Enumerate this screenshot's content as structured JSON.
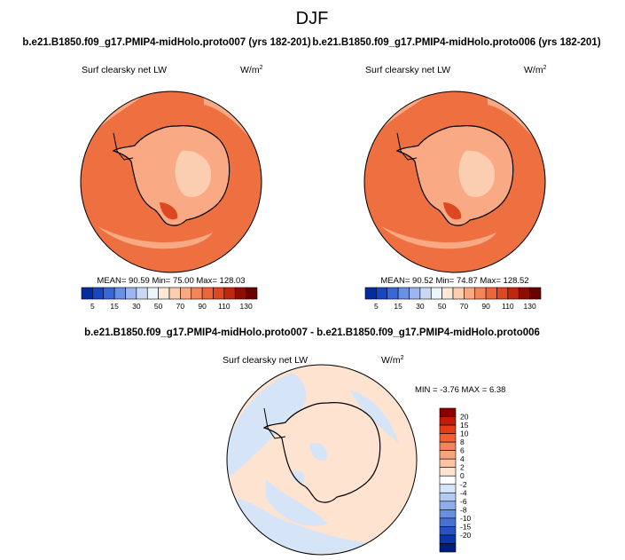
{
  "figure": {
    "title": "DJF",
    "top_left_title": "b.e21.B1850.f09_g17.PMIP4-midHolo.proto007 (yrs 182-201)",
    "top_right_title": "b.e21.B1850.f09_g17.PMIP4-midHolo.proto006 (yrs 182-201)",
    "diff_title": "b.e21.B1850.f09_g17.PMIP4-midHolo.proto007 - b.e21.B1850.f09_g17.PMIP4-midHolo.proto006"
  },
  "chart_data": [
    {
      "type": "heatmap",
      "panel": "top-left",
      "variable_label": "Surf clearsky net LW",
      "units_label": "W/m",
      "units_sup": "2",
      "stats": {
        "mean_label": "MEAN=",
        "mean": "90.59",
        "min_label": "Min=",
        "min": "75.00",
        "max_label": "Max=",
        "max": "128.03"
      },
      "colorbar": {
        "orientation": "horizontal",
        "levels": [
          5,
          10,
          15,
          20,
          30,
          40,
          50,
          60,
          70,
          80,
          90,
          100,
          110,
          120,
          130
        ],
        "tick_labels": [
          "5",
          "15",
          "30",
          "50",
          "70",
          "90",
          "110",
          "130"
        ],
        "colors": [
          "#052b9e",
          "#1745c4",
          "#3a67d6",
          "#6b8fe4",
          "#9eb5ee",
          "#c9d8f5",
          "#eef3fc",
          "#fde8d6",
          "#fcceb0",
          "#f9a982",
          "#f4845a",
          "#ed6638",
          "#dd4721",
          "#bf2810",
          "#8e0d05",
          "#6a0000"
        ]
      }
    },
    {
      "type": "heatmap",
      "panel": "top-right",
      "variable_label": "Surf clearsky net LW",
      "units_label": "W/m",
      "units_sup": "2",
      "stats": {
        "mean_label": "MEAN=",
        "mean": "90.52",
        "min_label": "Min=",
        "min": "74.87",
        "max_label": "Max=",
        "max": "128.52"
      },
      "colorbar": {
        "orientation": "horizontal",
        "levels": [
          5,
          10,
          15,
          20,
          30,
          40,
          50,
          60,
          70,
          80,
          90,
          100,
          110,
          120,
          130
        ],
        "tick_labels": [
          "5",
          "15",
          "30",
          "50",
          "70",
          "90",
          "110",
          "130"
        ],
        "colors": [
          "#052b9e",
          "#1745c4",
          "#3a67d6",
          "#6b8fe4",
          "#9eb5ee",
          "#c9d8f5",
          "#eef3fc",
          "#fde8d6",
          "#fcceb0",
          "#f9a982",
          "#f4845a",
          "#ed6638",
          "#dd4721",
          "#bf2810",
          "#8e0d05",
          "#6a0000"
        ]
      }
    },
    {
      "type": "heatmap",
      "panel": "bottom-difference",
      "variable_label": "Surf clearsky net LW",
      "units_label": "W/m",
      "units_sup": "2",
      "stats": {
        "min_label": "MIN =",
        "min": "-3.76",
        "max_label": "MAX =",
        "max": "6.38"
      },
      "colorbar": {
        "orientation": "vertical",
        "tick_labels": [
          "20",
          "15",
          "10",
          "8",
          "6",
          "4",
          "2",
          "0",
          "-2",
          "-4",
          "-6",
          "-8",
          "-10",
          "-15",
          "-20"
        ],
        "colors": [
          "#8a0000",
          "#c01d08",
          "#e43d17",
          "#f25f33",
          "#f7835a",
          "#f9a47f",
          "#fbc4a5",
          "#fde3d0",
          "#ffffff",
          "#d6e4f8",
          "#b3cbf2",
          "#8caee9",
          "#6990e0",
          "#4572d4",
          "#2553c4",
          "#0b36aa",
          "#001c7f"
        ]
      },
      "difference_pattern": "small positive (light orange) over most of Antarctica and the outer ocean; small negative (light blue) over the Ross Sea sector and along the western coast"
    }
  ]
}
